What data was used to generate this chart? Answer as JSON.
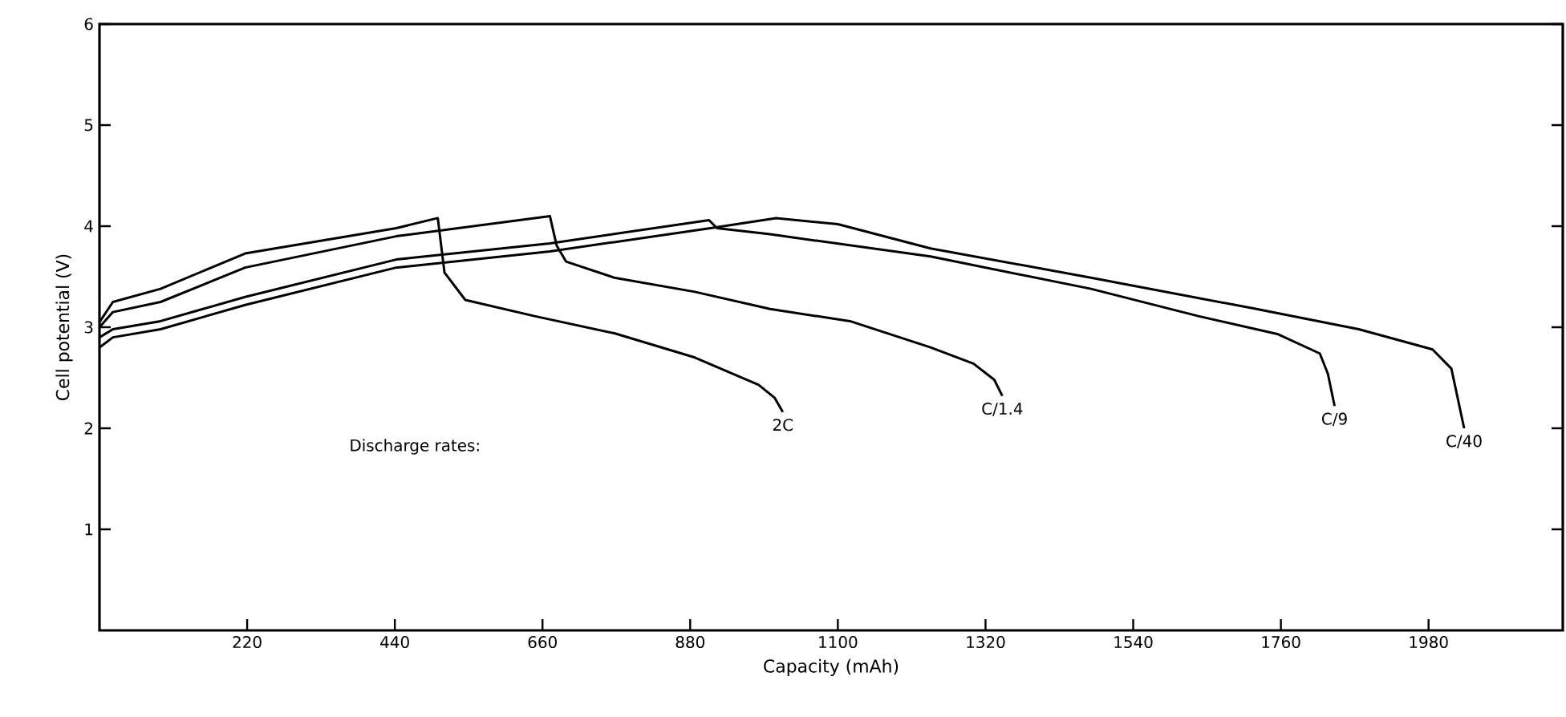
{
  "chart_data": {
    "type": "line",
    "xlabel": "Capacity (mAh)",
    "ylabel": "Cell potential (V)",
    "xlim": [
      0,
      2180
    ],
    "xticks": [
      220,
      440,
      660,
      880,
      1100,
      1320,
      1540,
      1760,
      1980
    ],
    "ylim": [
      0,
      6
    ],
    "yticks": [
      1,
      2,
      3,
      4,
      5,
      6
    ],
    "annotations": [
      "Discharge rates:"
    ],
    "marker": "none",
    "line_style": "solid",
    "grid": false,
    "legend": false,
    "series": [
      {
        "name": "2C",
        "color": "#000000",
        "x": [
          0,
          20,
          91,
          217,
          442,
          504,
          514,
          545,
          648,
          767,
          887,
          982,
          1006,
          1018
        ],
        "values": [
          3.05,
          3.25,
          3.38,
          3.73,
          3.98,
          4.08,
          3.54,
          3.27,
          3.11,
          2.94,
          2.7,
          2.43,
          2.3,
          2.16
        ]
      },
      {
        "name": "C/1.4",
        "color": "#000000",
        "x": [
          0,
          20,
          91,
          217,
          442,
          671,
          681,
          695,
          767,
          887,
          999,
          1118,
          1238,
          1302,
          1333,
          1345
        ],
        "values": [
          3.0,
          3.15,
          3.25,
          3.59,
          3.9,
          4.1,
          3.81,
          3.65,
          3.49,
          3.35,
          3.18,
          3.06,
          2.8,
          2.64,
          2.48,
          2.32
        ]
      },
      {
        "name": "C/9",
        "color": "#000000",
        "x": [
          0,
          20,
          91,
          217,
          442,
          671,
          908,
          920,
          999,
          1238,
          1477,
          1637,
          1756,
          1818,
          1830,
          1840
        ],
        "values": [
          2.9,
          2.98,
          3.06,
          3.3,
          3.67,
          3.83,
          4.06,
          3.98,
          3.92,
          3.7,
          3.38,
          3.11,
          2.93,
          2.74,
          2.54,
          2.22
        ]
      },
      {
        "name": "C/40",
        "color": "#000000",
        "x": [
          0,
          20,
          91,
          217,
          442,
          671,
          910,
          1008,
          1100,
          1238,
          1477,
          1716,
          1876,
          1986,
          2014,
          2033
        ],
        "values": [
          2.8,
          2.9,
          2.98,
          3.22,
          3.59,
          3.75,
          3.98,
          4.08,
          4.02,
          3.78,
          3.49,
          3.19,
          2.98,
          2.78,
          2.59,
          2.0
        ]
      }
    ]
  }
}
